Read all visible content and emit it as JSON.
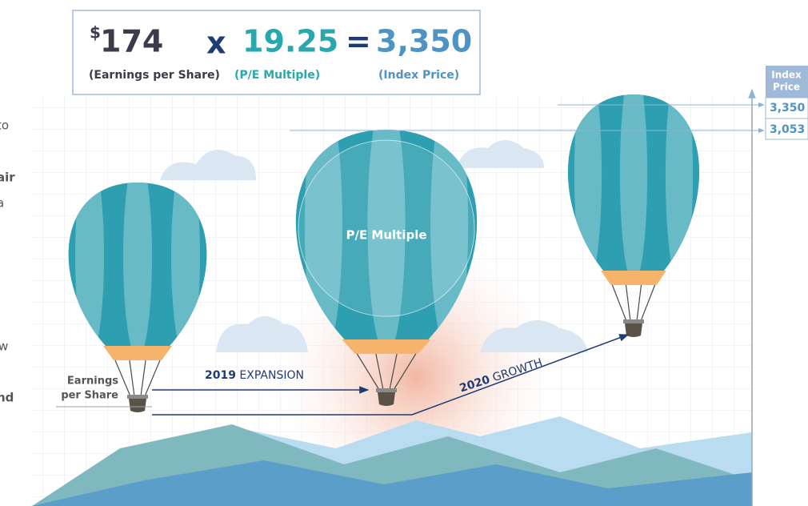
{
  "equation": {
    "eps": {
      "currency": "$",
      "value": "174",
      "label": "(Earnings per Share)"
    },
    "operator": "x",
    "pe": {
      "value": "19.25",
      "label": "(P/E Multiple)"
    },
    "equals": "=",
    "price": {
      "value": "3,350",
      "label": "(Index Price)"
    }
  },
  "axis": {
    "title_lines": [
      "Index",
      "Price"
    ],
    "ticks": [
      "3,350",
      "3,053"
    ]
  },
  "balloons": [
    {
      "label_lines": [
        "Earnings",
        "per Share"
      ]
    },
    {
      "label": "P/E Multiple"
    }
  ],
  "arrows": [
    {
      "year": "2019",
      "label": "EXPANSION"
    },
    {
      "year": "2020",
      "label": "GROWTH"
    }
  ],
  "side_text_fragments": [
    "to",
    "air",
    "a",
    "w",
    "nd"
  ]
}
